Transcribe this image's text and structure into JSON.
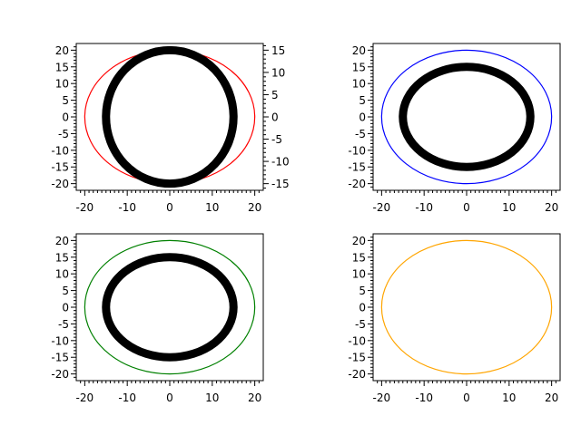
{
  "chart_data": [
    {
      "type": "line",
      "xlim": [
        -22,
        22
      ],
      "ylim": [
        -22,
        22
      ],
      "xticks": [
        -20,
        -10,
        0,
        10,
        20
      ],
      "yticks": [
        -20,
        -15,
        -10,
        -5,
        0,
        5,
        10,
        15,
        20
      ],
      "y2lim": [
        -16.5,
        16.5
      ],
      "y2ticks": [
        -15,
        -10,
        -5,
        0,
        5,
        10,
        15
      ],
      "grid": false,
      "series": [
        {
          "shape": "circle",
          "center": [
            0,
            0
          ],
          "radius": 20,
          "color": "#ff0000",
          "thick": false,
          "axis": "left"
        },
        {
          "shape": "circle",
          "center": [
            0,
            0
          ],
          "radius": 15,
          "color": "#000000",
          "thick": true,
          "axis": "right"
        }
      ]
    },
    {
      "type": "line",
      "xlim": [
        -22,
        22
      ],
      "ylim": [
        -22,
        22
      ],
      "xticks": [
        -20,
        -10,
        0,
        10,
        20
      ],
      "yticks": [
        -20,
        -15,
        -10,
        -5,
        0,
        5,
        10,
        15,
        20
      ],
      "grid": false,
      "series": [
        {
          "shape": "circle",
          "center": [
            0,
            0
          ],
          "radius": 20,
          "color": "#0000ff",
          "thick": false,
          "axis": "left"
        },
        {
          "shape": "circle",
          "center": [
            0,
            0
          ],
          "radius": 15,
          "color": "#000000",
          "thick": true,
          "axis": "left"
        }
      ]
    },
    {
      "type": "line",
      "xlim": [
        -22,
        22
      ],
      "ylim": [
        -22,
        22
      ],
      "xticks": [
        -20,
        -10,
        0,
        10,
        20
      ],
      "yticks": [
        -20,
        -15,
        -10,
        -5,
        0,
        5,
        10,
        15,
        20
      ],
      "grid": false,
      "series": [
        {
          "shape": "circle",
          "center": [
            0,
            0
          ],
          "radius": 20,
          "color": "#008000",
          "thick": false,
          "axis": "left"
        },
        {
          "shape": "circle",
          "center": [
            0,
            0
          ],
          "radius": 15,
          "color": "#000000",
          "thick": true,
          "axis": "left"
        }
      ]
    },
    {
      "type": "line",
      "xlim": [
        -22,
        22
      ],
      "ylim": [
        -22,
        22
      ],
      "xticks": [
        -20,
        -10,
        0,
        10,
        20
      ],
      "yticks": [
        -20,
        -15,
        -10,
        -5,
        0,
        5,
        10,
        15,
        20
      ],
      "grid": false,
      "series": [
        {
          "shape": "circle",
          "center": [
            0,
            0
          ],
          "radius": 20,
          "color": "#ffa500",
          "thick": false,
          "axis": "left"
        }
      ]
    }
  ]
}
